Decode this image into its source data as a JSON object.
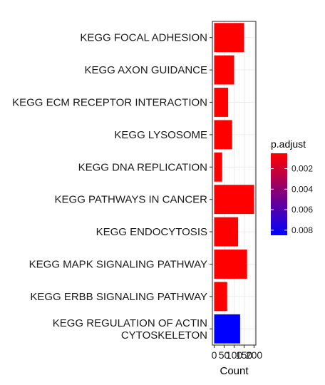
{
  "chart_data": {
    "type": "bar",
    "orientation": "horizontal",
    "categories": [
      "KEGG FOCAL ADHESION",
      "KEGG AXON GUIDANCE",
      "KEGG ECM RECEPTOR INTERACTION",
      "KEGG LYSOSOME",
      "KEGG DNA REPLICATION",
      "KEGG PATHWAYS IN CANCER",
      "KEGG ENDOCYTOSIS",
      "KEGG MAPK SIGNALING PATHWAY",
      "KEGG ERBB SIGNALING PATHWAY",
      "KEGG REGULATION OF ACTIN CYTOSKELETON"
    ],
    "category_display_lines": [
      [
        "KEGG FOCAL ADHESION"
      ],
      [
        "KEGG AXON GUIDANCE"
      ],
      [
        "KEGG ECM RECEPTOR INTERACTION"
      ],
      [
        "KEGG LYSOSOME"
      ],
      [
        "KEGG DNA REPLICATION"
      ],
      [
        "KEGG PATHWAYS IN CANCER"
      ],
      [
        "KEGG ENDOCYTOSIS"
      ],
      [
        "KEGG MAPK SIGNALING PATHWAY"
      ],
      [
        "KEGG ERBB SIGNALING PATHWAY"
      ],
      [
        "KEGG REGULATION OF ACTIN",
        "CYTOSKELETON"
      ]
    ],
    "values": [
      150,
      100,
      70,
      90,
      40,
      200,
      120,
      165,
      65,
      130
    ],
    "p_adjust": [
      0.0005,
      0.0005,
      0.0005,
      0.0005,
      0.0005,
      0.0005,
      0.0005,
      0.0005,
      0.0005,
      0.0085
    ],
    "xlabel": "Count",
    "x_ticks": [
      0,
      50,
      100,
      150,
      200
    ],
    "x_tick_labels": [
      "0",
      "50",
      "100",
      "150",
      "200"
    ],
    "xlim": [
      -9,
      209
    ],
    "grid": true,
    "legend": {
      "title": "p.adjust",
      "placement": "right",
      "type": "colorbar",
      "range": [
        0.0005,
        0.0085
      ],
      "ticks": [
        0.002,
        0.004,
        0.006,
        0.008
      ],
      "tick_labels": [
        "0.002",
        "0.004",
        "0.006",
        "0.008"
      ],
      "reversed": true,
      "color_low": "#ff0000",
      "color_high": "#0000ff"
    }
  }
}
